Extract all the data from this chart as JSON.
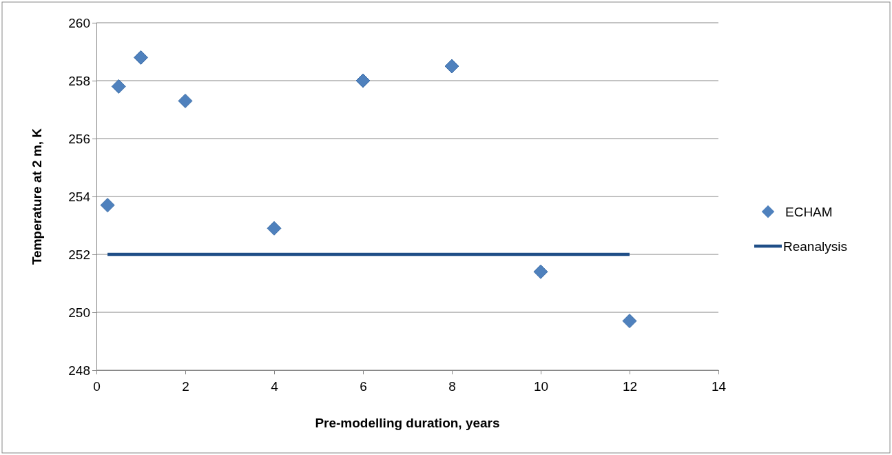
{
  "chart_data": {
    "type": "scatter",
    "xlabel": "Pre-modelling duration, years",
    "ylabel": "Temperature at 2 m, K",
    "series": [
      {
        "name": "ECHAM",
        "color": "#4f81bd",
        "marker": "diamond",
        "x": [
          0.25,
          0.5,
          1,
          2,
          4,
          6,
          8,
          10,
          12
        ],
        "values": [
          253.7,
          257.8,
          258.8,
          257.3,
          252.9,
          258.0,
          258.5,
          251.4,
          249.7
        ]
      },
      {
        "name": "Reanalysis",
        "type": "line",
        "color": "#1f4e87",
        "marker": "none",
        "line_style": "solid",
        "x": [
          0.25,
          12
        ],
        "values": [
          252,
          252
        ]
      }
    ],
    "xlim": [
      0,
      14
    ],
    "xticks": [
      0,
      2,
      4,
      6,
      8,
      10,
      12,
      14
    ],
    "ylim": [
      248,
      260
    ],
    "yticks": [
      248,
      250,
      252,
      254,
      256,
      258,
      260
    ],
    "grid": "y",
    "legend": "right"
  }
}
